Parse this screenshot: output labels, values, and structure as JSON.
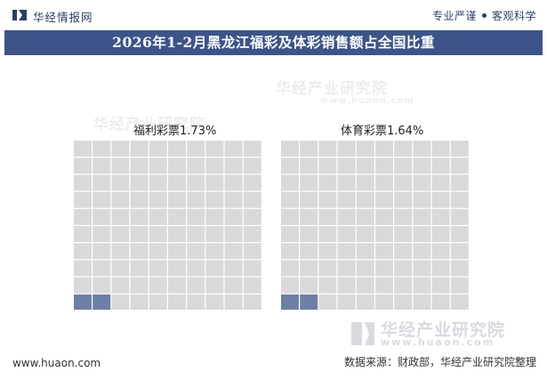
{
  "header": {
    "logo_text": "华经情报网",
    "tagline_a": "专业严谨",
    "tagline_b": "客观科学"
  },
  "title": "2026年1-2月黑龙江福彩及体彩销售额占全国比重",
  "colors": {
    "title_bg": "#3d5488",
    "cell_empty": "#d9d9d9",
    "cell_filled": "#6d7fa6"
  },
  "watermarks": {
    "brand": "华经产业研究院",
    "url": "www.huaon.com"
  },
  "chart_data": [
    {
      "type": "waffle",
      "label": "福利彩票1.73%",
      "value": 1.73,
      "unit": "%",
      "grid": [
        10,
        10
      ]
    },
    {
      "type": "waffle",
      "label": "体育彩票1.64%",
      "value": 1.64,
      "unit": "%",
      "grid": [
        10,
        10
      ]
    }
  ],
  "footer": {
    "website": "www.huaon.com",
    "source": "数据来源：财政部，华经产业研究院整理"
  }
}
